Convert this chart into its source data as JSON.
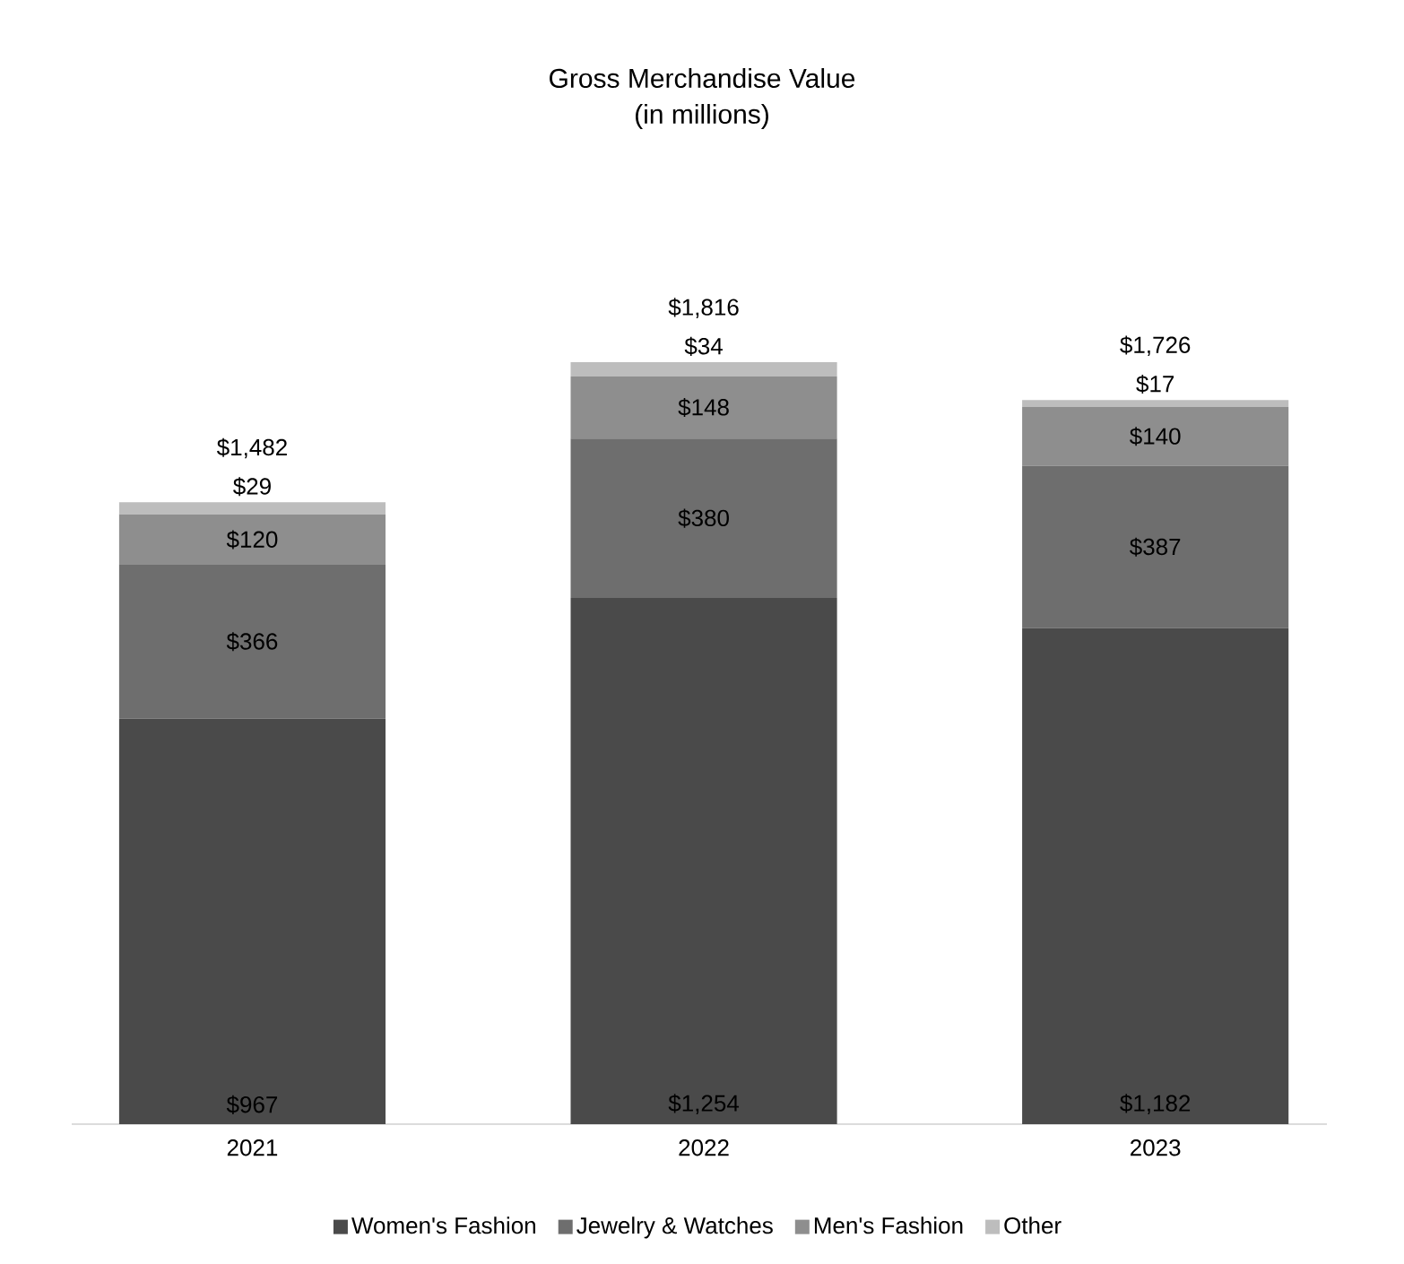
{
  "chart_data": {
    "type": "bar",
    "stacked": true,
    "title": "Gross Merchandise Value",
    "subtitle": "(in millions)",
    "categories": [
      "2021",
      "2022",
      "2023"
    ],
    "series": [
      {
        "name": "Women's Fashion",
        "color": "#4a4a4a",
        "values": [
          967,
          1254,
          1182
        ],
        "value_labels": [
          "$967",
          "$1,254",
          "$1,182"
        ]
      },
      {
        "name": "Jewelry & Watches",
        "color": "#6e6e6e",
        "values": [
          366,
          380,
          387
        ],
        "value_labels": [
          "$366",
          "$380",
          "$387"
        ]
      },
      {
        "name": "Men's Fashion",
        "color": "#8e8e8e",
        "values": [
          120,
          148,
          140
        ],
        "value_labels": [
          "$120",
          "$148",
          "$140"
        ]
      },
      {
        "name": "Other",
        "color": "#bdbdbd",
        "values": [
          29,
          34,
          17
        ],
        "value_labels": [
          "$29",
          "$34",
          "$17"
        ]
      }
    ],
    "totals": [
      "$1,482",
      "$1,816",
      "$1,726"
    ],
    "legend": "bottom",
    "marker": "square"
  }
}
